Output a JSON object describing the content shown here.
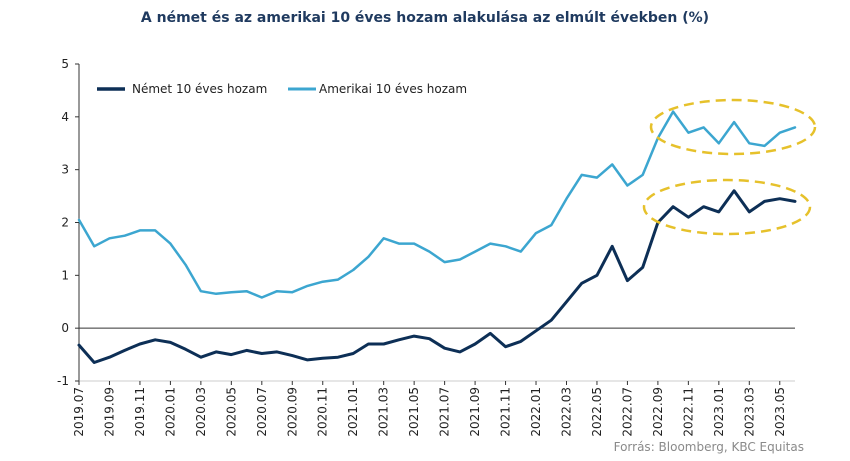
{
  "chart_data": {
    "type": "line",
    "title": "A német és az amerikai 10 éves hozam alakulása az elmúlt években  (%)",
    "source": "Forrás: Bloomberg, KBC Equitas",
    "xlabel": "",
    "ylabel": "",
    "ylim": [
      -1,
      5
    ],
    "yticks": [
      -1,
      0,
      1,
      2,
      3,
      4,
      5
    ],
    "xlim": [
      "2019.07",
      "2023.06"
    ],
    "xticks": [
      "2019.07",
      "2019.09",
      "2019.11",
      "2020.01",
      "2020.03",
      "2020.05",
      "2020.07",
      "2020.09",
      "2020.11",
      "2021.01",
      "2021.03",
      "2021.05",
      "2021.07",
      "2021.09",
      "2021.11",
      "2022.01",
      "2022.03",
      "2022.05",
      "2022.07",
      "2022.09",
      "2022.11",
      "2023.01",
      "2023.03",
      "2023.05"
    ],
    "grid": false,
    "legend_position": "top-left",
    "annotations": [
      "dashed ellipse around recent US yields",
      "dashed ellipse around recent German yields"
    ],
    "series": [
      {
        "name": "Német 10 éves hozam",
        "color": "#0d2f56",
        "x": [
          "2019.07",
          "2019.08",
          "2019.09",
          "2019.10",
          "2019.11",
          "2019.12",
          "2020.01",
          "2020.02",
          "2020.03",
          "2020.04",
          "2020.05",
          "2020.06",
          "2020.07",
          "2020.08",
          "2020.09",
          "2020.10",
          "2020.11",
          "2020.12",
          "2021.01",
          "2021.02",
          "2021.03",
          "2021.04",
          "2021.05",
          "2021.06",
          "2021.07",
          "2021.08",
          "2021.09",
          "2021.10",
          "2021.11",
          "2021.12",
          "2022.01",
          "2022.02",
          "2022.03",
          "2022.04",
          "2022.05",
          "2022.06",
          "2022.07",
          "2022.08",
          "2022.09",
          "2022.10",
          "2022.11",
          "2022.12",
          "2023.01",
          "2023.02",
          "2023.03",
          "2023.04",
          "2023.05",
          "2023.06"
        ],
        "values": [
          -0.32,
          -0.65,
          -0.55,
          -0.42,
          -0.3,
          -0.22,
          -0.27,
          -0.4,
          -0.55,
          -0.45,
          -0.5,
          -0.42,
          -0.48,
          -0.45,
          -0.52,
          -0.6,
          -0.57,
          -0.55,
          -0.48,
          -0.3,
          -0.3,
          -0.22,
          -0.15,
          -0.2,
          -0.38,
          -0.45,
          -0.3,
          -0.1,
          -0.35,
          -0.25,
          -0.05,
          0.15,
          0.5,
          0.85,
          1.0,
          1.55,
          0.9,
          1.15,
          2.0,
          2.3,
          2.1,
          2.3,
          2.2,
          2.6,
          2.2,
          2.4,
          2.45,
          2.4
        ]
      },
      {
        "name": "Amerikai 10 éves hozam",
        "color": "#3ca6d0",
        "x": [
          "2019.07",
          "2019.08",
          "2019.09",
          "2019.10",
          "2019.11",
          "2019.12",
          "2020.01",
          "2020.02",
          "2020.03",
          "2020.04",
          "2020.05",
          "2020.06",
          "2020.07",
          "2020.08",
          "2020.09",
          "2020.10",
          "2020.11",
          "2020.12",
          "2021.01",
          "2021.02",
          "2021.03",
          "2021.04",
          "2021.05",
          "2021.06",
          "2021.07",
          "2021.08",
          "2021.09",
          "2021.10",
          "2021.11",
          "2021.12",
          "2022.01",
          "2022.02",
          "2022.03",
          "2022.04",
          "2022.05",
          "2022.06",
          "2022.07",
          "2022.08",
          "2022.09",
          "2022.10",
          "2022.11",
          "2022.12",
          "2023.01",
          "2023.02",
          "2023.03",
          "2023.04",
          "2023.05",
          "2023.06"
        ],
        "values": [
          2.05,
          1.55,
          1.7,
          1.75,
          1.85,
          1.85,
          1.6,
          1.2,
          0.7,
          0.65,
          0.68,
          0.7,
          0.58,
          0.7,
          0.68,
          0.8,
          0.88,
          0.92,
          1.1,
          1.35,
          1.7,
          1.6,
          1.6,
          1.45,
          1.25,
          1.3,
          1.45,
          1.6,
          1.55,
          1.45,
          1.8,
          1.95,
          2.45,
          2.9,
          2.85,
          3.1,
          2.7,
          2.9,
          3.6,
          4.1,
          3.7,
          3.8,
          3.5,
          3.9,
          3.5,
          3.45,
          3.7,
          3.8
        ]
      }
    ]
  }
}
